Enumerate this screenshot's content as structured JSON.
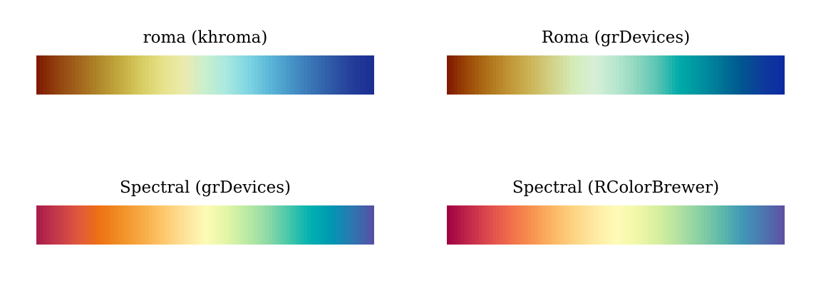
{
  "chart_data": [
    {
      "type": "heatmap",
      "title": "roma (khroma)",
      "colors": [
        "#7e1700",
        "#92420f",
        "#a2651d",
        "#b1892c",
        "#c4ab40",
        "#d8cd63",
        "#e5e28a",
        "#ebebae",
        "#c9efcf",
        "#a9e8df",
        "#80d6e2",
        "#5db8d9",
        "#4796c8",
        "#3a76b6",
        "#2e58a6",
        "#233c99",
        "#1a2d91"
      ]
    },
    {
      "type": "heatmap",
      "title": "Roma (grDevices)",
      "colors": [
        "#7e1700",
        "#9c4a07",
        "#b0741c",
        "#c19736",
        "#cdb65a",
        "#d2d288",
        "#d4ebb8",
        "#d8efd8",
        "#b8e6cf",
        "#8ed7bf",
        "#57c4b3",
        "#00aba9",
        "#0092a0",
        "#007497",
        "#005590",
        "#0e3a9b",
        "#0b2aa3"
      ]
    },
    {
      "type": "heatmap",
      "title": "Spectral (grDevices)",
      "colors": [
        "#a71b4b",
        "#c5394a",
        "#e0593c",
        "#ee7112",
        "#f18f24",
        "#f7aa45",
        "#fdc76b",
        "#fee19a",
        "#fdfbb6",
        "#e3f6a7",
        "#b9eaa3",
        "#8bd9a6",
        "#43c6aa",
        "#00b0b0",
        "#0097b2",
        "#2e75b0",
        "#584ea2"
      ]
    },
    {
      "type": "heatmap",
      "title": "Spectral (RColorBrewer)",
      "colors": [
        "#9e0142",
        "#c1264a",
        "#de4b4c",
        "#f06e4a",
        "#f8914f",
        "#fcb564",
        "#fdd383",
        "#feeaa1",
        "#fefbb8",
        "#f0f8a8",
        "#d7ef9f",
        "#b1e1a1",
        "#88cfa4",
        "#5fb9a9",
        "#3f98b6",
        "#4d75b1",
        "#5e4fa2"
      ]
    }
  ]
}
